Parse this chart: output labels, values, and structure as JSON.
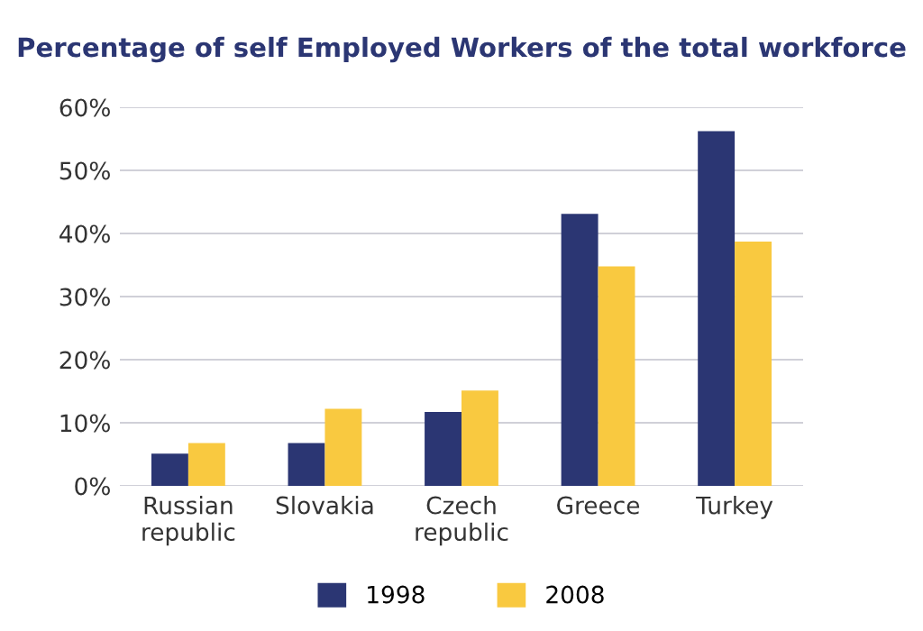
{
  "chart_data": {
    "type": "bar",
    "title": "Percentage of self Employed Workers of the total workforce",
    "categories": [
      "Russian\nrepublic",
      "Slovakia",
      "Czech\nrepublic",
      "Greece",
      "Turkey"
    ],
    "series": [
      {
        "name": "1998",
        "color": "#2b3673",
        "values": [
          5.1,
          6.8,
          11.7,
          43.1,
          56.2
        ]
      },
      {
        "name": "2008",
        "color": "#f9c940",
        "values": [
          6.8,
          12.2,
          15.1,
          34.8,
          38.7
        ]
      }
    ],
    "ylim": [
      0,
      60
    ],
    "yticks": [
      {
        "value": 0,
        "label": "0%"
      },
      {
        "value": 10,
        "label": "10%"
      },
      {
        "value": 20,
        "label": "20%"
      },
      {
        "value": 30,
        "label": "30%"
      },
      {
        "value": 40,
        "label": "40%"
      },
      {
        "value": 50,
        "label": "50%"
      },
      {
        "value": 60,
        "label": "60%"
      }
    ],
    "grid": "y",
    "legend": "bottom"
  }
}
